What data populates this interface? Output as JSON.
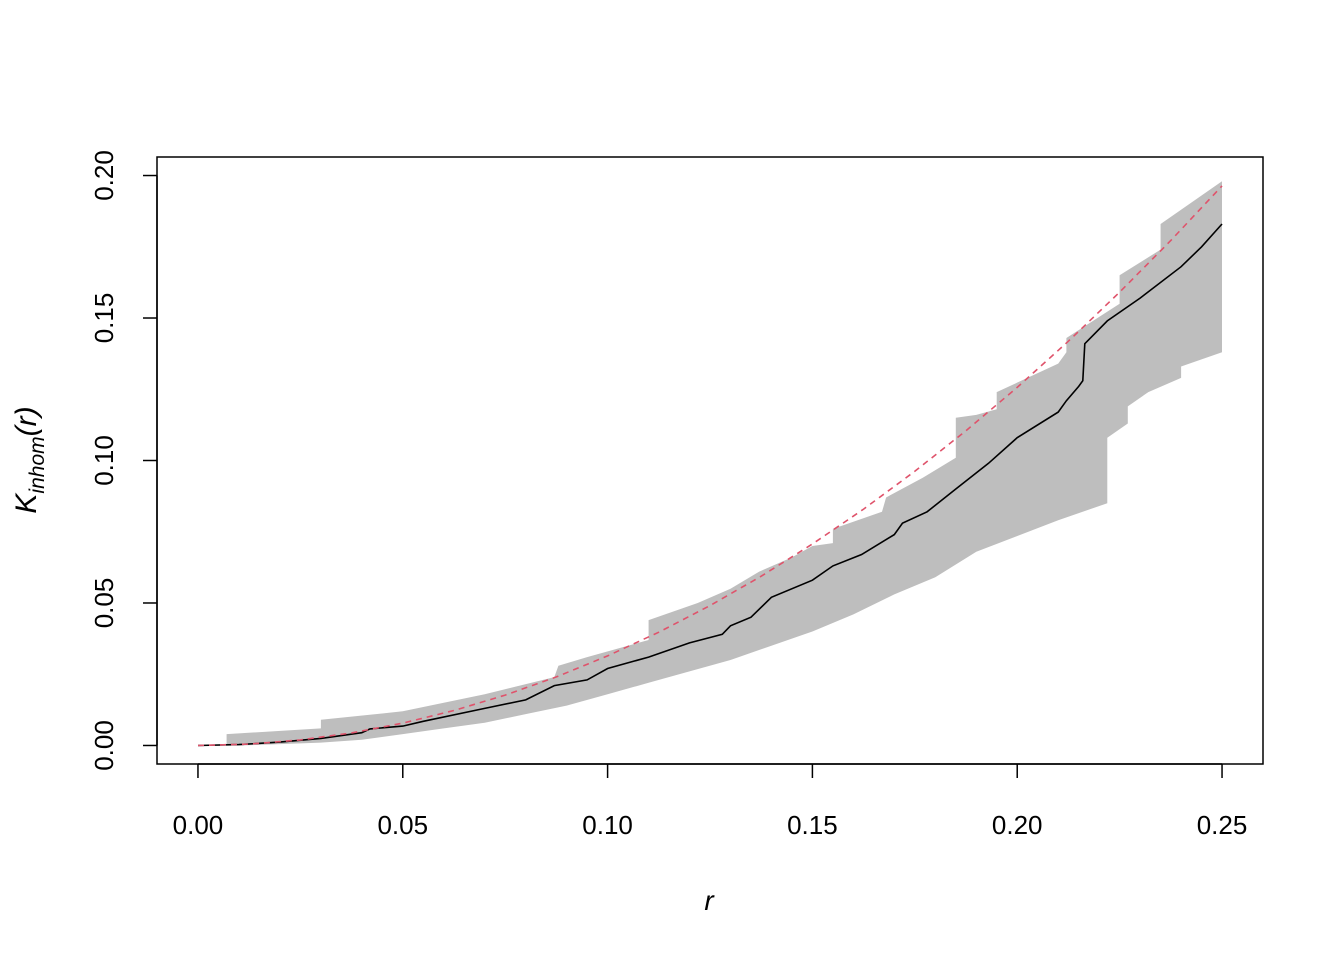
{
  "chart_data": {
    "type": "line",
    "title": "",
    "xlabel": "r",
    "ylabel_main": "K",
    "ylabel_sub": "inhom",
    "ylabel_arg": "(r)",
    "xlim": [
      -0.01,
      0.26
    ],
    "ylim": [
      -0.0065,
      0.2065
    ],
    "x_ticks": [
      0.0,
      0.05,
      0.1,
      0.15,
      0.2,
      0.25
    ],
    "x_tick_labels": [
      "0.00",
      "0.05",
      "0.10",
      "0.15",
      "0.20",
      "0.25"
    ],
    "y_ticks": [
      0.0,
      0.05,
      0.1,
      0.15,
      0.2
    ],
    "y_tick_labels": [
      "0.00",
      "0.05",
      "0.10",
      "0.15",
      "0.20"
    ],
    "grid": false,
    "legend": "none",
    "envelope": {
      "color": "#bebebe",
      "hi": [
        [
          0,
          0
        ],
        [
          0.007,
          0
        ],
        [
          0.007,
          0.004
        ],
        [
          0.03,
          0.006
        ],
        [
          0.03,
          0.009
        ],
        [
          0.05,
          0.012
        ],
        [
          0.07,
          0.018
        ],
        [
          0.087,
          0.024
        ],
        [
          0.088,
          0.028
        ],
        [
          0.095,
          0.031
        ],
        [
          0.11,
          0.037
        ],
        [
          0.11,
          0.044
        ],
        [
          0.122,
          0.05
        ],
        [
          0.13,
          0.055
        ],
        [
          0.137,
          0.061
        ],
        [
          0.145,
          0.066
        ],
        [
          0.15,
          0.07
        ],
        [
          0.155,
          0.071
        ],
        [
          0.155,
          0.076
        ],
        [
          0.167,
          0.082
        ],
        [
          0.168,
          0.087
        ],
        [
          0.177,
          0.094
        ],
        [
          0.185,
          0.101
        ],
        [
          0.185,
          0.115
        ],
        [
          0.19,
          0.116
        ],
        [
          0.195,
          0.118
        ],
        [
          0.195,
          0.124
        ],
        [
          0.21,
          0.134
        ],
        [
          0.212,
          0.138
        ],
        [
          0.212,
          0.143
        ],
        [
          0.225,
          0.155
        ],
        [
          0.225,
          0.165
        ],
        [
          0.235,
          0.174
        ],
        [
          0.235,
          0.183
        ],
        [
          0.25,
          0.198
        ]
      ],
      "lo": [
        [
          0.25,
          0.138
        ],
        [
          0.24,
          0.133
        ],
        [
          0.24,
          0.129
        ],
        [
          0.232,
          0.124
        ],
        [
          0.227,
          0.119
        ],
        [
          0.227,
          0.113
        ],
        [
          0.222,
          0.108
        ],
        [
          0.222,
          0.085
        ],
        [
          0.21,
          0.079
        ],
        [
          0.19,
          0.068
        ],
        [
          0.18,
          0.059
        ],
        [
          0.17,
          0.053
        ],
        [
          0.16,
          0.046
        ],
        [
          0.15,
          0.04
        ],
        [
          0.14,
          0.035
        ],
        [
          0.13,
          0.03
        ],
        [
          0.12,
          0.026
        ],
        [
          0.11,
          0.022
        ],
        [
          0.1,
          0.018
        ],
        [
          0.09,
          0.014
        ],
        [
          0.08,
          0.011
        ],
        [
          0.07,
          0.008
        ],
        [
          0.06,
          0.006
        ],
        [
          0.05,
          0.004
        ],
        [
          0.04,
          0.002
        ],
        [
          0.03,
          0.001
        ],
        [
          0.02,
          0.0005
        ],
        [
          0.01,
          0
        ]
      ]
    },
    "series": [
      {
        "color": "#000000",
        "dash": "solid",
        "values": [
          [
            0,
            0
          ],
          [
            0.01,
            0.0003
          ],
          [
            0.02,
            0.0012
          ],
          [
            0.03,
            0.0025
          ],
          [
            0.04,
            0.0045
          ],
          [
            0.042,
            0.0058
          ],
          [
            0.05,
            0.0068
          ],
          [
            0.055,
            0.0085
          ],
          [
            0.07,
            0.013
          ],
          [
            0.08,
            0.016
          ],
          [
            0.087,
            0.021
          ],
          [
            0.095,
            0.023
          ],
          [
            0.1,
            0.027
          ],
          [
            0.11,
            0.031
          ],
          [
            0.12,
            0.036
          ],
          [
            0.128,
            0.039
          ],
          [
            0.13,
            0.042
          ],
          [
            0.135,
            0.045
          ],
          [
            0.14,
            0.052
          ],
          [
            0.15,
            0.058
          ],
          [
            0.155,
            0.063
          ],
          [
            0.162,
            0.067
          ],
          [
            0.17,
            0.074
          ],
          [
            0.172,
            0.078
          ],
          [
            0.178,
            0.082
          ],
          [
            0.185,
            0.09
          ],
          [
            0.193,
            0.099
          ],
          [
            0.2,
            0.108
          ],
          [
            0.21,
            0.117
          ],
          [
            0.212,
            0.121
          ],
          [
            0.215,
            0.126
          ],
          [
            0.216,
            0.128
          ],
          [
            0.2165,
            0.141
          ],
          [
            0.222,
            0.149
          ],
          [
            0.23,
            0.157
          ],
          [
            0.24,
            0.168
          ],
          [
            0.245,
            0.175
          ],
          [
            0.25,
            0.183
          ]
        ]
      },
      {
        "color": "#df536b",
        "dash": "dashed",
        "values": [
          [
            0,
            0
          ],
          [
            0.0125,
            0.000491
          ],
          [
            0.025,
            0.001963
          ],
          [
            0.0375,
            0.004418
          ],
          [
            0.05,
            0.007854
          ],
          [
            0.0625,
            0.012272
          ],
          [
            0.075,
            0.017671
          ],
          [
            0.0875,
            0.024053
          ],
          [
            0.1,
            0.031416
          ],
          [
            0.1125,
            0.039761
          ],
          [
            0.125,
            0.049087
          ],
          [
            0.1375,
            0.059396
          ],
          [
            0.15,
            0.070686
          ],
          [
            0.1625,
            0.082958
          ],
          [
            0.175,
            0.096211
          ],
          [
            0.1875,
            0.110447
          ],
          [
            0.2,
            0.125664
          ],
          [
            0.2125,
            0.141863
          ],
          [
            0.225,
            0.159043
          ],
          [
            0.2375,
            0.177206
          ],
          [
            0.25,
            0.19635
          ]
        ]
      }
    ]
  }
}
